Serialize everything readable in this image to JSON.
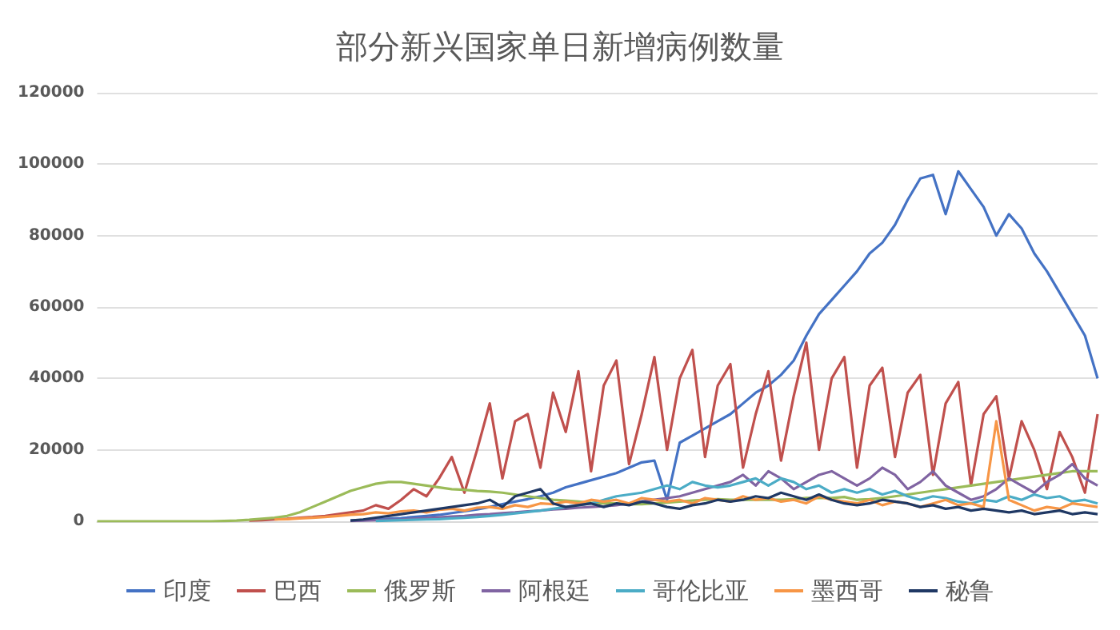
{
  "chart_data": {
    "type": "line",
    "title": "部分新兴国家单日新增病例数量",
    "categories": [
      null,
      null,
      null,
      null,
      null,
      null,
      null,
      null,
      null,
      null,
      null,
      null,
      null,
      null,
      null,
      null,
      null,
      null,
      null,
      null,
      null,
      null,
      null,
      null,
      null,
      null,
      null,
      null,
      null,
      null,
      null,
      null,
      null,
      null,
      null,
      null,
      null,
      null,
      null,
      null,
      null,
      null,
      null,
      null,
      null,
      null,
      null,
      null,
      null,
      null,
      null,
      null,
      null,
      null,
      null,
      null,
      null,
      null,
      null,
      null,
      null,
      null,
      null,
      null,
      null,
      null,
      null,
      null,
      null,
      null,
      null,
      null,
      null,
      null,
      null,
      null,
      null,
      null,
      null,
      null
    ],
    "series": [
      {
        "name": "印度",
        "color": "#4472c4",
        "values": [
          null,
          null,
          null,
          null,
          null,
          null,
          null,
          null,
          null,
          null,
          null,
          null,
          null,
          null,
          null,
          null,
          null,
          null,
          null,
          null,
          200,
          300,
          500,
          700,
          900,
          1200,
          1500,
          1800,
          2300,
          2800,
          3300,
          4000,
          4800,
          5500,
          6200,
          7000,
          8000,
          9500,
          10500,
          11500,
          12500,
          13500,
          15000,
          16500,
          17000,
          6000,
          22000,
          24000,
          26000,
          28000,
          30000,
          33000,
          36000,
          38000,
          41000,
          45000,
          52000,
          58000,
          62000,
          66000,
          70000,
          75000,
          78000,
          83000,
          90000,
          96000,
          97000,
          86000,
          98000,
          93000,
          88000,
          80000,
          86000,
          82000,
          75000,
          70000,
          64000,
          58000,
          52000,
          40000
        ]
      },
      {
        "name": "巴西",
        "color": "#c0504d",
        "values": [
          null,
          null,
          null,
          null,
          null,
          null,
          null,
          null,
          null,
          null,
          null,
          null,
          200,
          300,
          500,
          700,
          1000,
          1200,
          1500,
          2000,
          2500,
          3000,
          4500,
          3500,
          6000,
          9000,
          7000,
          12000,
          18000,
          8000,
          20000,
          33000,
          12000,
          28000,
          30000,
          15000,
          36000,
          25000,
          42000,
          14000,
          38000,
          45000,
          16000,
          30000,
          46000,
          20000,
          40000,
          48000,
          18000,
          38000,
          44000,
          15000,
          30000,
          42000,
          17000,
          35000,
          50000,
          20000,
          40000,
          46000,
          15000,
          38000,
          43000,
          18000,
          36000,
          41000,
          13000,
          33000,
          39000,
          10000,
          30000,
          35000,
          12000,
          28000,
          20000,
          9000,
          25000,
          18000,
          8000,
          30000
        ]
      },
      {
        "name": "俄罗斯",
        "color": "#9bbb59",
        "values": [
          0,
          0,
          0,
          0,
          0,
          0,
          0,
          0,
          0,
          0,
          100,
          200,
          400,
          700,
          1000,
          1500,
          2500,
          4000,
          5500,
          7000,
          8500,
          9500,
          10500,
          11000,
          11000,
          10500,
          10000,
          9500,
          9000,
          8800,
          8500,
          8300,
          8000,
          7500,
          7000,
          6500,
          6000,
          5800,
          5500,
          5200,
          5000,
          5000,
          4800,
          4800,
          5000,
          5200,
          5500,
          5800,
          6000,
          6200,
          6000,
          6000,
          6000,
          6000,
          6000,
          6200,
          6500,
          6500,
          6500,
          6800,
          6000,
          6200,
          6500,
          7000,
          7500,
          8000,
          8500,
          9000,
          9500,
          10000,
          10500,
          11000,
          11500,
          12000,
          12500,
          13000,
          13500,
          14000,
          14000,
          14000
        ]
      },
      {
        "name": "阿根廷",
        "color": "#8064a2",
        "values": [
          null,
          null,
          null,
          null,
          null,
          null,
          null,
          null,
          null,
          null,
          null,
          null,
          null,
          null,
          null,
          null,
          null,
          null,
          null,
          null,
          100,
          200,
          300,
          400,
          500,
          700,
          900,
          1100,
          1300,
          1500,
          1800,
          2000,
          2300,
          2500,
          2800,
          3000,
          3300,
          3500,
          3800,
          4000,
          4200,
          4500,
          5000,
          5500,
          6000,
          6500,
          7000,
          8000,
          9000,
          10000,
          11000,
          13000,
          10000,
          14000,
          12000,
          9000,
          11000,
          13000,
          14000,
          12000,
          10000,
          12000,
          15000,
          13000,
          9000,
          11000,
          14000,
          10000,
          8000,
          6000,
          7000,
          9000,
          12000,
          10000,
          8000,
          11000,
          13000,
          16000,
          12000,
          10000
        ]
      },
      {
        "name": "哥伦比亚",
        "color": "#4bacc6",
        "values": [
          null,
          null,
          null,
          null,
          null,
          null,
          null,
          null,
          null,
          null,
          null,
          null,
          null,
          null,
          null,
          null,
          null,
          null,
          null,
          null,
          null,
          null,
          100,
          200,
          300,
          400,
          500,
          600,
          800,
          1000,
          1200,
          1500,
          1800,
          2200,
          2600,
          3000,
          3500,
          4000,
          4500,
          5000,
          6000,
          7000,
          7500,
          8000,
          9000,
          10000,
          9000,
          11000,
          10000,
          9500,
          10000,
          11000,
          12000,
          10000,
          12000,
          11000,
          9000,
          10000,
          8000,
          9000,
          8000,
          9000,
          7500,
          8500,
          7000,
          6000,
          7000,
          6500,
          5500,
          5000,
          6000,
          5500,
          7000,
          6000,
          7500,
          6500,
          7000,
          5500,
          6000,
          5000
        ]
      },
      {
        "name": "墨西哥",
        "color": "#f79646",
        "values": [
          null,
          null,
          null,
          null,
          null,
          null,
          null,
          null,
          null,
          null,
          null,
          null,
          null,
          null,
          500,
          600,
          800,
          1000,
          1200,
          1500,
          1800,
          2000,
          2500,
          2200,
          2800,
          3000,
          2500,
          3200,
          3500,
          3000,
          3800,
          4000,
          3500,
          4500,
          4000,
          5000,
          4800,
          5500,
          5000,
          6000,
          5500,
          6000,
          5000,
          6500,
          6000,
          5500,
          6000,
          5000,
          6500,
          6000,
          5500,
          7000,
          6000,
          6500,
          5500,
          6000,
          5000,
          7000,
          6000,
          5500,
          5000,
          6000,
          4500,
          5500,
          5000,
          4000,
          5000,
          6000,
          4500,
          5000,
          4000,
          28000,
          6000,
          4500,
          3000,
          4000,
          3500,
          5000,
          4500,
          4000
        ]
      },
      {
        "name": "秘鲁",
        "color": "#1f3864",
        "values": [
          null,
          null,
          null,
          null,
          null,
          null,
          null,
          null,
          null,
          null,
          null,
          null,
          null,
          null,
          null,
          null,
          null,
          null,
          null,
          null,
          200,
          500,
          1000,
          1500,
          2000,
          2500,
          3000,
          3500,
          4000,
          4500,
          5000,
          6000,
          4000,
          7000,
          8000,
          9000,
          5000,
          4000,
          4500,
          5000,
          4000,
          5000,
          4500,
          5500,
          5000,
          4000,
          3500,
          4500,
          5000,
          6000,
          5500,
          6000,
          7000,
          6500,
          8000,
          7000,
          6000,
          7500,
          6000,
          5000,
          4500,
          5000,
          6000,
          5500,
          5000,
          4000,
          4500,
          3500,
          4000,
          3000,
          3500,
          3000,
          2500,
          3000,
          2000,
          2500,
          3000,
          2000,
          2500,
          2000
        ]
      }
    ],
    "ylim": [
      0,
      120000
    ],
    "yticks": [
      0,
      20000,
      40000,
      60000,
      80000,
      100000,
      120000
    ],
    "grid": "y",
    "legend": "bottom",
    "marker": "none",
    "line_style": "solid"
  }
}
